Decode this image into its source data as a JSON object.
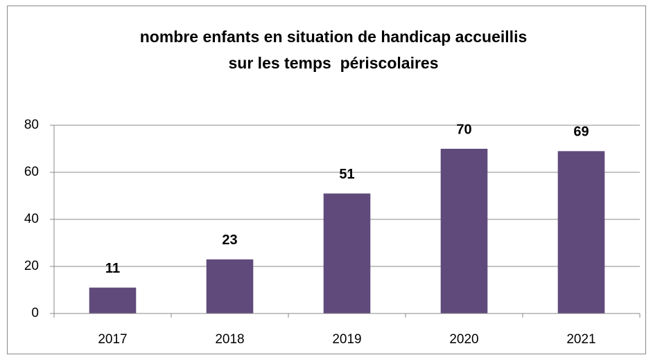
{
  "chart_data": {
    "type": "bar",
    "title": [
      "nombre enfants en situation de handicap accueillis",
      "sur les temps  périscolaires"
    ],
    "categories": [
      "2017",
      "2018",
      "2019",
      "2020",
      "2021"
    ],
    "values": [
      11,
      23,
      51,
      70,
      69
    ],
    "color": "#604a7b",
    "ylim": [
      0,
      80
    ],
    "yticks": [
      0,
      20,
      40,
      60,
      80
    ],
    "grid": true
  }
}
